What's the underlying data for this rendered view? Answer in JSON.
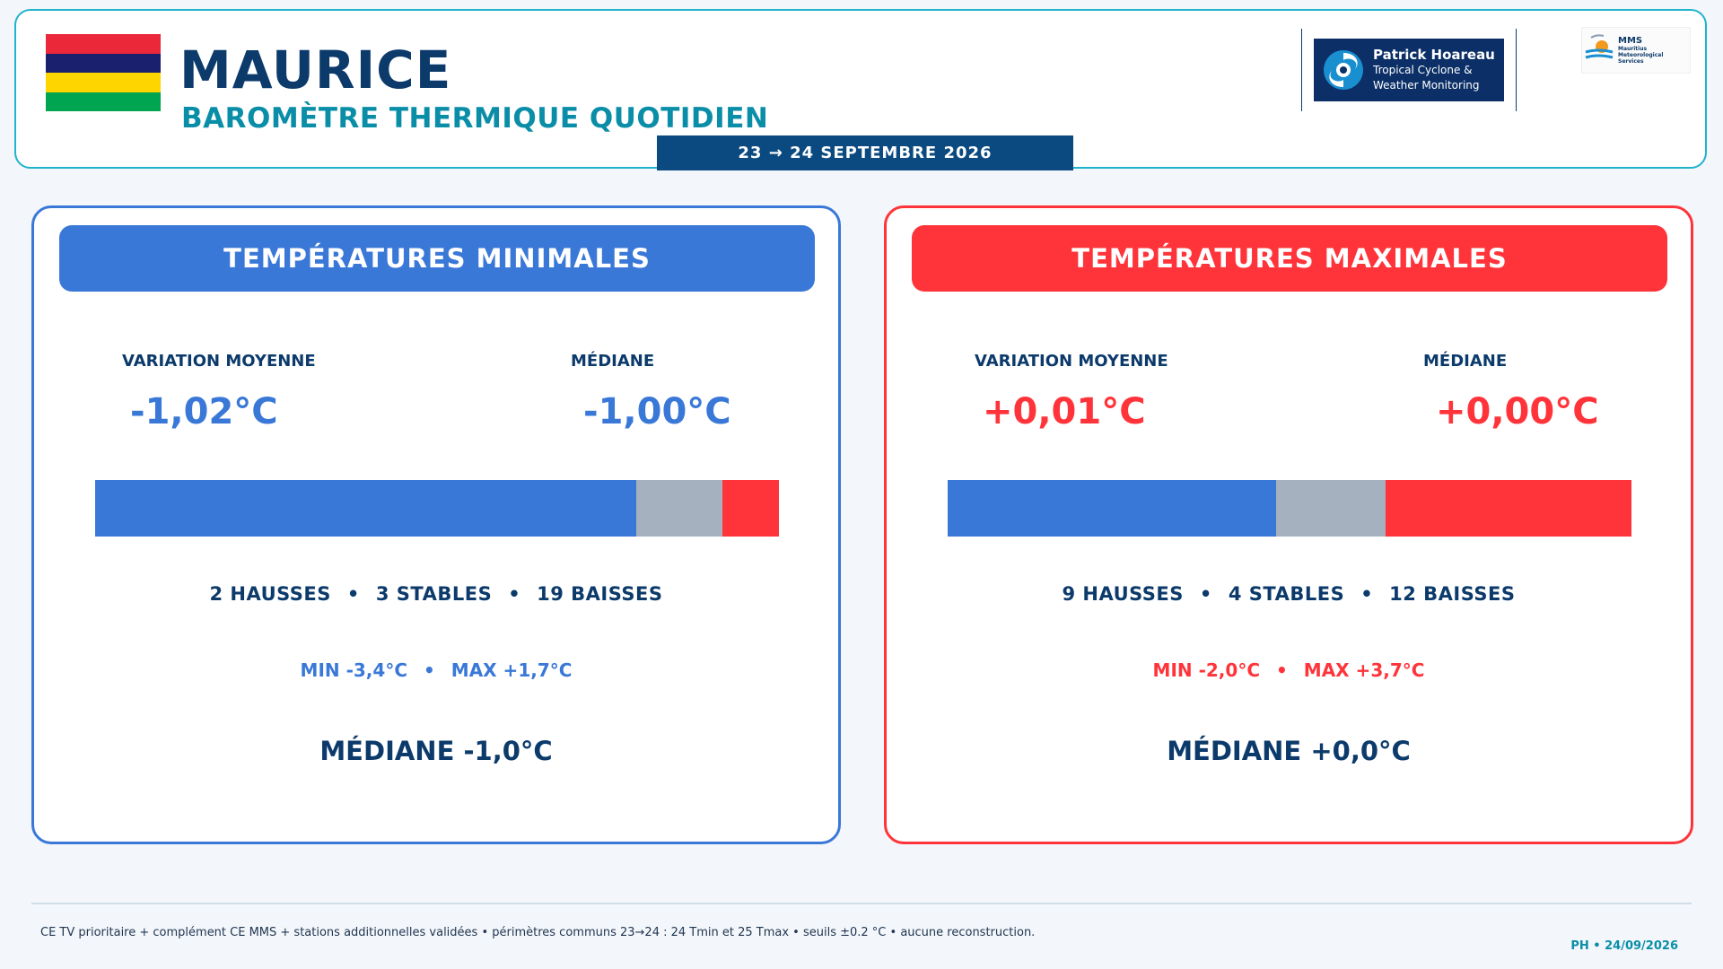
{
  "header": {
    "title": "MAURICE",
    "subtitle": "BAROMÈTRE THERMIQUE QUOTIDIEN",
    "date_range": "23 → 24 SEPTEMBRE 2026",
    "flag_colors": [
      "#ea2839",
      "#1a206d",
      "#ffd500",
      "#00a551"
    ],
    "partner_logo": {
      "name": "Patrick Hoareau",
      "tagline_1": "Tropical Cyclone &",
      "tagline_2": "Weather Monitoring"
    },
    "mms_logo": {
      "abbr": "MMS",
      "line_1": "Mauritius",
      "line_2": "Meteorological",
      "line_3": "Services"
    }
  },
  "panels": {
    "min": {
      "title": "TEMPÉRATURES MINIMALES",
      "mean_label": "VARIATION MOYENNE",
      "mean_value": "-1,02°C",
      "median_label": "MÉDIANE",
      "median_value": "-1,00°C",
      "distribution": {
        "baisses": 19,
        "stables": 3,
        "hausses": 2
      },
      "counts": {
        "hausses": "2 HAUSSES",
        "stables": "3 STABLES",
        "baisses": "19 BAISSES"
      },
      "range": {
        "min": "MIN -3,4°C",
        "max": "MAX +1,7°C"
      },
      "median_footer": "MÉDIANE -1,0°C"
    },
    "max": {
      "title": "TEMPÉRATURES MAXIMALES",
      "mean_label": "VARIATION MOYENNE",
      "mean_value": "+0,01°C",
      "median_label": "MÉDIANE",
      "median_value": "+0,00°C",
      "distribution": {
        "baisses": 12,
        "stables": 4,
        "hausses": 9
      },
      "counts": {
        "hausses": "9 HAUSSES",
        "stables": "4 STABLES",
        "baisses": "12 BAISSES"
      },
      "range": {
        "min": "MIN -2,0°C",
        "max": "MAX +3,7°C"
      },
      "median_footer": "MÉDIANE +0,0°C"
    }
  },
  "colors": {
    "down": "#3a78d8",
    "stable": "#a5b1bf",
    "up": "#ff343a",
    "navy": "#0b3a6b",
    "teal": "#0a8ea8"
  },
  "footer": {
    "note": "CE TV prioritaire + complément CE MMS + stations additionnelles validées • périmètres communs 23→24 : 24 Tmin et 25 Tmax • seuils ±0.2 °C • aucune reconstruction.",
    "signature": "PH • 24/09/2026"
  }
}
